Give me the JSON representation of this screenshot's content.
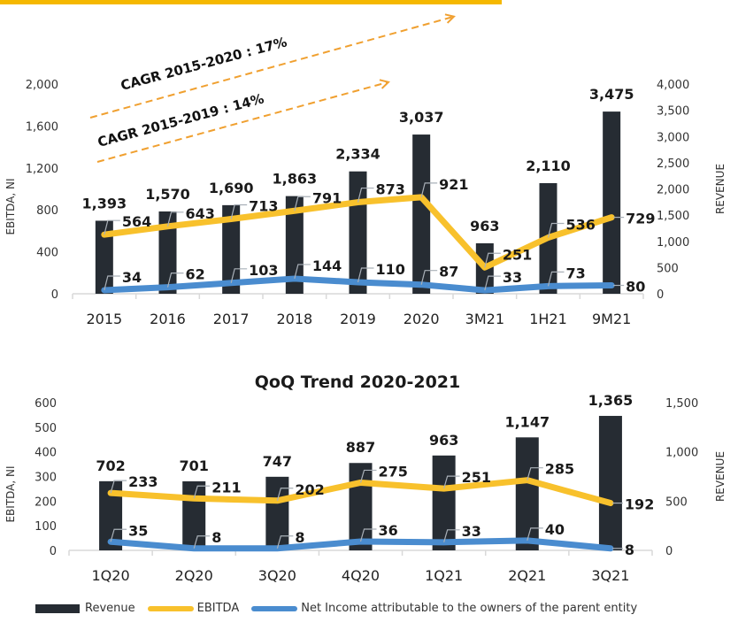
{
  "colors": {
    "revenue": "#262c33",
    "ebitda": "#f8c12c",
    "net_income": "#4a8ccf",
    "cagr": "#f0a030",
    "topbar": "#f5b800"
  },
  "legend": [
    {
      "key": "revenue",
      "label": "Revenue",
      "type": "bar"
    },
    {
      "key": "ebitda",
      "label": "EBITDA",
      "type": "line"
    },
    {
      "key": "net_income",
      "label": "Net Income attributable to the owners of the parent entity",
      "type": "line"
    }
  ],
  "chart_data": [
    {
      "type": "bar",
      "title": "",
      "annotations": [
        "CAGR 2015-2020 : 17%",
        "CAGR 2015-2019 : 14%"
      ],
      "categories": [
        "2015",
        "2016",
        "2017",
        "2018",
        "2019",
        "2020",
        "3M21",
        "1H21",
        "9M21"
      ],
      "series": [
        {
          "name": "Revenue",
          "key": "revenue",
          "axis": "right",
          "kind": "bar",
          "values": [
            1393,
            1570,
            1690,
            1863,
            2334,
            3037,
            963,
            2110,
            3475
          ],
          "labels": [
            "1,393",
            "1,570",
            "1,690",
            "1,863",
            "2,334",
            "3,037",
            "963",
            "2,110",
            "3,475"
          ]
        },
        {
          "name": "EBITDA",
          "key": "ebitda",
          "axis": "left",
          "kind": "line",
          "values": [
            564,
            643,
            713,
            791,
            873,
            921,
            251,
            536,
            729
          ],
          "labels": [
            "564",
            "643",
            "713",
            "791",
            "873",
            "921",
            "251",
            "536",
            "729"
          ]
        },
        {
          "name": "Net Income attributable to the owners of the parent entity",
          "key": "net_income",
          "axis": "left",
          "kind": "line",
          "values": [
            34,
            62,
            103,
            144,
            110,
            87,
            33,
            73,
            80
          ],
          "labels": [
            "34",
            "62",
            "103",
            "144",
            "110",
            "87",
            "33",
            "73",
            "80"
          ]
        }
      ],
      "ylabel": "EBITDA, NI",
      "ylabel_right": "REVENUE",
      "ylim": [
        0,
        2000
      ],
      "yticks": [
        0,
        400,
        800,
        1200,
        1600,
        2000
      ],
      "ytick_labels": [
        "0",
        "400",
        "800",
        "1,200",
        "1,600",
        "2,000"
      ],
      "ylim_right": [
        0,
        4000
      ],
      "yticks_right": [
        0,
        500,
        1000,
        1500,
        2000,
        2500,
        3000,
        3500,
        4000
      ],
      "ytick_labels_right": [
        "0",
        "500",
        "1,000",
        "1,500",
        "2,000",
        "2,500",
        "3,000",
        "3,500",
        "4,000"
      ],
      "grid": false
    },
    {
      "type": "bar",
      "title": "QoQ Trend 2020-2021",
      "categories": [
        "1Q20",
        "2Q20",
        "3Q20",
        "4Q20",
        "1Q21",
        "2Q21",
        "3Q21"
      ],
      "series": [
        {
          "name": "Revenue",
          "key": "revenue",
          "axis": "right",
          "kind": "bar",
          "values": [
            702,
            701,
            747,
            887,
            963,
            1147,
            1365
          ],
          "labels": [
            "702",
            "701",
            "747",
            "887",
            "963",
            "1,147",
            "1,365"
          ]
        },
        {
          "name": "EBITDA",
          "key": "ebitda",
          "axis": "left",
          "kind": "line",
          "values": [
            233,
            211,
            202,
            275,
            251,
            285,
            192
          ],
          "labels": [
            "233",
            "211",
            "202",
            "275",
            "251",
            "285",
            "192"
          ]
        },
        {
          "name": "Net Income attributable to the owners of the parent entity",
          "key": "net_income",
          "axis": "left",
          "kind": "line",
          "values": [
            35,
            8,
            8,
            36,
            33,
            40,
            8
          ],
          "labels": [
            "35",
            "8",
            "8",
            "36",
            "33",
            "40",
            "8"
          ]
        }
      ],
      "ylabel": "EBITDA, NI",
      "ylabel_right": "REVENUE",
      "ylim": [
        0,
        600
      ],
      "yticks": [
        0,
        100,
        200,
        300,
        400,
        500,
        600
      ],
      "ytick_labels": [
        "0",
        "100",
        "200",
        "300",
        "400",
        "500",
        "600"
      ],
      "ylim_right": [
        0,
        1500
      ],
      "yticks_right": [
        0,
        500,
        1000,
        1500
      ],
      "ytick_labels_right": [
        "0",
        "500",
        "1,000",
        "1,500"
      ],
      "grid": false,
      "legend_position": "bottom"
    }
  ]
}
